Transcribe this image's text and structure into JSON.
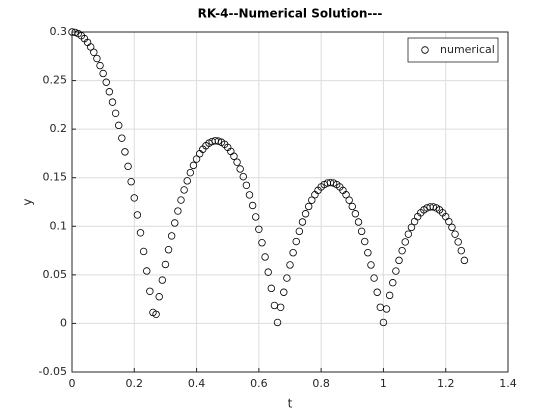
{
  "chart_data": {
    "type": "scatter",
    "title": "RK-4--Numerical Solution---",
    "xlabel": "t",
    "ylabel": "y",
    "x": [
      0,
      0.01,
      0.02,
      0.03,
      0.04,
      0.05,
      0.06,
      0.07,
      0.08,
      0.09,
      0.1,
      0.11,
      0.12,
      0.13,
      0.14,
      0.15,
      0.16,
      0.17,
      0.18,
      0.19,
      0.2,
      0.21,
      0.22,
      0.23,
      0.24,
      0.25,
      0.26,
      0.27,
      0.28,
      0.29,
      0.3,
      0.31,
      0.32,
      0.33,
      0.34,
      0.35,
      0.36,
      0.37,
      0.38,
      0.39,
      0.4,
      0.41,
      0.42,
      0.43,
      0.44,
      0.45,
      0.46,
      0.47,
      0.48,
      0.49,
      0.5,
      0.51,
      0.52,
      0.53,
      0.54,
      0.55,
      0.56,
      0.57,
      0.58,
      0.59,
      0.6,
      0.61,
      0.62,
      0.63,
      0.64,
      0.65,
      0.66,
      0.67,
      0.68,
      0.69,
      0.7,
      0.71,
      0.72,
      0.73,
      0.74,
      0.75,
      0.76,
      0.77,
      0.78,
      0.79,
      0.8,
      0.81,
      0.82,
      0.83,
      0.84,
      0.85,
      0.86,
      0.87,
      0.88,
      0.89,
      0.9,
      0.91,
      0.92,
      0.93,
      0.94,
      0.95,
      0.96,
      0.97,
      0.98,
      0.99,
      1,
      1.01,
      1.02,
      1.03,
      1.04,
      1.05,
      1.06,
      1.07,
      1.08,
      1.09,
      1.1,
      1.11,
      1.12,
      1.13,
      1.14,
      1.15,
      1.16,
      1.17,
      1.18,
      1.19,
      1.2,
      1.21,
      1.22,
      1.23,
      1.24,
      1.25,
      1.26
    ],
    "series": [
      {
        "name": "numerical",
        "color": "#000000",
        "values": [
          0.3,
          0.2996,
          0.2983,
          0.2962,
          0.2932,
          0.2893,
          0.2846,
          0.2791,
          0.2727,
          0.2654,
          0.2573,
          0.2483,
          0.2385,
          0.2278,
          0.2163,
          0.2039,
          0.1907,
          0.1766,
          0.1617,
          0.1459,
          0.1292,
          0.1117,
          0.0933,
          0.0741,
          0.054,
          0.0331,
          0.0113,
          0.0094,
          0.0275,
          0.0446,
          0.0607,
          0.0759,
          0.0901,
          0.1034,
          0.1157,
          0.127,
          0.1374,
          0.1468,
          0.1552,
          0.1627,
          0.1692,
          0.1747,
          0.1793,
          0.1829,
          0.1856,
          0.1872,
          0.188,
          0.1877,
          0.1865,
          0.1844,
          0.1812,
          0.1771,
          0.1721,
          0.166,
          0.159,
          0.1511,
          0.1422,
          0.1323,
          0.1214,
          0.1096,
          0.0969,
          0.0831,
          0.0684,
          0.0528,
          0.0361,
          0.0185,
          0.001,
          0.0166,
          0.0321,
          0.0467,
          0.0602,
          0.0728,
          0.0843,
          0.0948,
          0.1044,
          0.1129,
          0.1204,
          0.1269,
          0.1325,
          0.137,
          0.1405,
          0.143,
          0.1445,
          0.145,
          0.1445,
          0.143,
          0.1405,
          0.137,
          0.1325,
          0.1269,
          0.1204,
          0.1129,
          0.1044,
          0.0948,
          0.0843,
          0.0728,
          0.0602,
          0.0467,
          0.0321,
          0.0166,
          0.001,
          0.0149,
          0.0289,
          0.0419,
          0.0539,
          0.0649,
          0.0749,
          0.0839,
          0.0919,
          0.0989,
          0.1049,
          0.1099,
          0.1139,
          0.1169,
          0.1189,
          0.1199,
          0.1199,
          0.1189,
          0.1169,
          0.1139,
          0.1099,
          0.1049,
          0.0989,
          0.0919,
          0.0839,
          0.0749,
          0.0649
        ]
      }
    ],
    "xlim": [
      0,
      1.4
    ],
    "xticks": [
      0,
      0.2,
      0.4,
      0.6,
      0.8,
      1,
      1.2,
      1.4
    ],
    "ylim": [
      -0.05,
      0.3
    ],
    "yticks": [
      -0.05,
      0,
      0.05,
      0.1,
      0.15,
      0.2,
      0.25,
      0.3
    ],
    "grid": true,
    "legend": "upper right"
  }
}
